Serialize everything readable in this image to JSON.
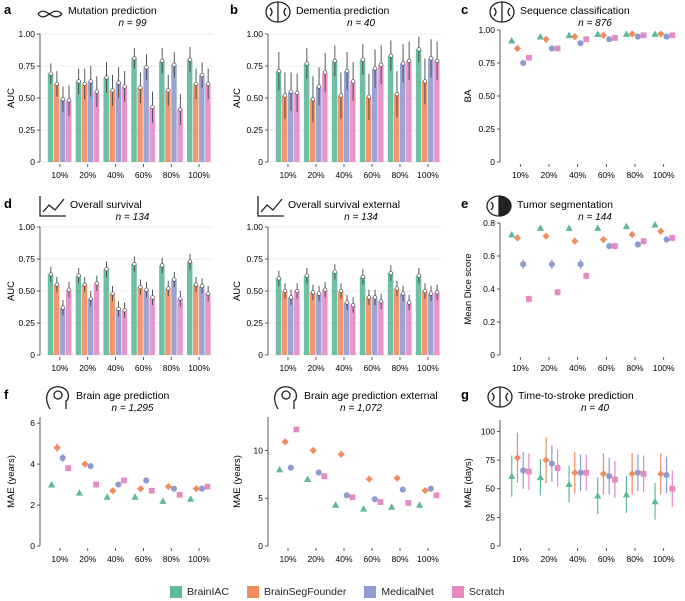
{
  "colors": {
    "BrainIAC": "#5fb89a",
    "BrainSegFounder": "#f08c5e",
    "MedicalNet": "#8f9bd0",
    "Scratch": "#e58ac4",
    "errorbar": "#333333",
    "grid": "#dddddd"
  },
  "legend": {
    "items": [
      {
        "name": "BrainIAC",
        "color": "#5fb89a"
      },
      {
        "name": "BrainSegFounder",
        "color": "#f08c5e"
      },
      {
        "name": "MedicalNet",
        "color": "#8f9bd0"
      },
      {
        "name": "Scratch",
        "color": "#e58ac4"
      }
    ]
  },
  "chart_data": [
    {
      "id": "a",
      "panel_letter": "a",
      "type": "bar",
      "title": "Mutation prediction",
      "subtitle": "n = 99",
      "icon": "dna-icon",
      "ylabel": "AUC",
      "ylim": [
        0,
        1.0
      ],
      "yticks": [
        "0",
        "0.25",
        "0.50",
        "0.75",
        "1.00"
      ],
      "categories": [
        "10%",
        "20%",
        "40%",
        "60%",
        "80%",
        "100%"
      ],
      "series": [
        {
          "name": "BrainIAC",
          "values": [
            0.69,
            0.63,
            0.66,
            0.81,
            0.79,
            0.8
          ],
          "err": [
            0.08,
            0.1,
            0.12,
            0.08,
            0.1,
            0.1
          ]
        },
        {
          "name": "BrainSegFounder",
          "values": [
            0.61,
            0.61,
            0.56,
            0.58,
            0.56,
            0.61
          ],
          "err": [
            0.1,
            0.12,
            0.12,
            0.12,
            0.12,
            0.12
          ]
        },
        {
          "name": "MedicalNet",
          "values": [
            0.49,
            0.63,
            0.62,
            0.74,
            0.76,
            0.68
          ],
          "err": [
            0.1,
            0.12,
            0.12,
            0.1,
            0.1,
            0.1
          ]
        },
        {
          "name": "Scratch",
          "values": [
            0.48,
            0.55,
            0.59,
            0.43,
            0.41,
            0.61
          ],
          "err": [
            0.12,
            0.12,
            0.12,
            0.12,
            0.12,
            0.12
          ]
        }
      ]
    },
    {
      "id": "b",
      "panel_letter": "b",
      "type": "bar",
      "title": "Dementia prediction",
      "subtitle": "n = 40",
      "icon": "brain-icon",
      "ylabel": "AUC",
      "ylim": [
        0,
        1.0
      ],
      "yticks": [
        "0",
        "0.25",
        "0.50",
        "0.75",
        "1.00"
      ],
      "categories": [
        "10%",
        "20%",
        "40%",
        "60%",
        "80%",
        "100%"
      ],
      "series": [
        {
          "name": "BrainIAC",
          "values": [
            0.71,
            0.77,
            0.79,
            0.8,
            0.83,
            0.88
          ],
          "err": [
            0.15,
            0.12,
            0.12,
            0.12,
            0.12,
            0.1
          ]
        },
        {
          "name": "BrainSegFounder",
          "values": [
            0.52,
            0.49,
            0.52,
            0.51,
            0.53,
            0.63
          ],
          "err": [
            0.18,
            0.18,
            0.18,
            0.18,
            0.18,
            0.18
          ]
        },
        {
          "name": "MedicalNet",
          "values": [
            0.55,
            0.59,
            0.71,
            0.73,
            0.77,
            0.81
          ],
          "err": [
            0.15,
            0.15,
            0.15,
            0.15,
            0.15,
            0.15
          ]
        },
        {
          "name": "Scratch",
          "values": [
            0.54,
            0.7,
            0.63,
            0.76,
            0.79,
            0.79
          ],
          "err": [
            0.15,
            0.15,
            0.15,
            0.15,
            0.15,
            0.15
          ]
        }
      ]
    },
    {
      "id": "c",
      "panel_letter": "c",
      "type": "scatter",
      "title": "Sequence classification",
      "subtitle": "n = 876",
      "icon": "brain-icon",
      "ylabel": "BA",
      "ylim": [
        0,
        1.0
      ],
      "yticks": [
        "0",
        "0.25",
        "0.50",
        "0.75",
        "1.00"
      ],
      "categories": [
        "10%",
        "20%",
        "40%",
        "60%",
        "80%",
        "100%"
      ],
      "series": [
        {
          "name": "BrainIAC",
          "values": [
            0.92,
            0.95,
            0.96,
            0.97,
            0.97,
            0.97
          ],
          "err": [
            0.01,
            0.01,
            0.01,
            0.01,
            0.01,
            0.01
          ]
        },
        {
          "name": "BrainSegFounder",
          "values": [
            0.86,
            0.93,
            0.95,
            0.96,
            0.97,
            0.97
          ],
          "err": [
            0.01,
            0.01,
            0.01,
            0.01,
            0.01,
            0.01
          ]
        },
        {
          "name": "MedicalNet",
          "values": [
            0.75,
            0.86,
            0.9,
            0.93,
            0.95,
            0.95
          ],
          "err": [
            0.01,
            0.01,
            0.01,
            0.01,
            0.01,
            0.01
          ]
        },
        {
          "name": "Scratch",
          "values": [
            0.79,
            0.86,
            0.93,
            0.94,
            0.96,
            0.96
          ],
          "err": [
            0.01,
            0.01,
            0.01,
            0.01,
            0.01,
            0.01
          ]
        }
      ]
    },
    {
      "id": "d1",
      "panel_letter": "d",
      "type": "bar",
      "title": "Overall survival",
      "subtitle": "n = 134",
      "icon": "trend-chart-icon",
      "ylabel": "AUC",
      "ylim": [
        0,
        1.0
      ],
      "yticks": [
        "0",
        "0.25",
        "0.50",
        "0.75",
        "1.00"
      ],
      "categories": [
        "10%",
        "20%",
        "40%",
        "60%",
        "80%",
        "100%"
      ],
      "series": [
        {
          "name": "BrainIAC",
          "values": [
            0.63,
            0.62,
            0.67,
            0.71,
            0.7,
            0.73
          ],
          "err": [
            0.06,
            0.06,
            0.06,
            0.06,
            0.06,
            0.06
          ]
        },
        {
          "name": "BrainSegFounder",
          "values": [
            0.55,
            0.55,
            0.48,
            0.53,
            0.52,
            0.55
          ],
          "err": [
            0.06,
            0.06,
            0.06,
            0.06,
            0.06,
            0.06
          ]
        },
        {
          "name": "MedicalNet",
          "values": [
            0.37,
            0.44,
            0.36,
            0.51,
            0.59,
            0.54
          ],
          "err": [
            0.06,
            0.06,
            0.06,
            0.06,
            0.06,
            0.06
          ]
        },
        {
          "name": "Scratch",
          "values": [
            0.51,
            0.56,
            0.35,
            0.45,
            0.44,
            0.48
          ],
          "err": [
            0.06,
            0.06,
            0.06,
            0.06,
            0.06,
            0.06
          ]
        }
      ]
    },
    {
      "id": "d2",
      "panel_letter": "",
      "type": "bar",
      "title": "Overall survival external",
      "subtitle": "n = 134",
      "icon": "trend-chart-icon",
      "ylabel": "AUC",
      "ylim": [
        0,
        1.0
      ],
      "yticks": [
        "0",
        "0.25",
        "0.50",
        "0.75",
        "1.00"
      ],
      "categories": [
        "10%",
        "20%",
        "40%",
        "60%",
        "80%",
        "100%"
      ],
      "series": [
        {
          "name": "BrainIAC",
          "values": [
            0.6,
            0.62,
            0.65,
            0.61,
            0.64,
            0.62
          ],
          "err": [
            0.06,
            0.06,
            0.06,
            0.06,
            0.06,
            0.06
          ]
        },
        {
          "name": "BrainSegFounder",
          "values": [
            0.5,
            0.49,
            0.5,
            0.45,
            0.52,
            0.5
          ],
          "err": [
            0.06,
            0.06,
            0.06,
            0.06,
            0.06,
            0.06
          ]
        },
        {
          "name": "MedicalNet",
          "values": [
            0.45,
            0.48,
            0.41,
            0.45,
            0.48,
            0.48
          ],
          "err": [
            0.06,
            0.06,
            0.06,
            0.06,
            0.06,
            0.06
          ]
        },
        {
          "name": "Scratch",
          "values": [
            0.5,
            0.51,
            0.39,
            0.42,
            0.41,
            0.49
          ],
          "err": [
            0.06,
            0.06,
            0.06,
            0.06,
            0.06,
            0.06
          ]
        }
      ]
    },
    {
      "id": "e",
      "panel_letter": "e",
      "type": "scatter",
      "title": "Tumor segmentation",
      "subtitle": "n = 144",
      "icon": "brain-half-icon",
      "ylabel": "Mean Dice score",
      "ylim": [
        0,
        0.8
      ],
      "yticks": [
        "0",
        "0.2",
        "0.4",
        "0.6",
        "0.8"
      ],
      "categories": [
        "10%",
        "20%",
        "40%",
        "60%",
        "80%",
        "100%"
      ],
      "series": [
        {
          "name": "BrainIAC",
          "values": [
            0.73,
            0.77,
            0.77,
            0.77,
            0.78,
            0.79
          ],
          "err": [
            0.01,
            0.01,
            0.01,
            0.01,
            0.01,
            0.01
          ]
        },
        {
          "name": "BrainSegFounder",
          "values": [
            0.71,
            0.72,
            0.69,
            0.7,
            0.73,
            0.75
          ],
          "err": [
            0.02,
            0.02,
            0.02,
            0.02,
            0.02,
            0.02
          ]
        },
        {
          "name": "MedicalNet",
          "values": [
            0.55,
            0.55,
            0.55,
            0.66,
            0.67,
            0.7
          ],
          "err": [
            0.03,
            0.03,
            0.03,
            0.02,
            0.02,
            0.02
          ]
        },
        {
          "name": "Scratch",
          "values": [
            0.34,
            0.38,
            0.48,
            0.66,
            0.69,
            0.71
          ],
          "err": [
            0.02,
            0.02,
            0.02,
            0.02,
            0.02,
            0.02
          ]
        }
      ]
    },
    {
      "id": "f1",
      "panel_letter": "f",
      "type": "scatter",
      "title": "Brain age prediction",
      "subtitle": "n = 1,295",
      "icon": "head-brain-icon",
      "ylabel": "MAE (years)",
      "ylim": [
        0,
        6.3
      ],
      "yticks": [
        "0",
        "2",
        "4",
        "6"
      ],
      "ytick_values": [
        0,
        2,
        4,
        6
      ],
      "categories": [
        "10%",
        "20%",
        "40%",
        "60%",
        "80%",
        "100%"
      ],
      "series": [
        {
          "name": "BrainIAC",
          "values": [
            3.0,
            2.6,
            2.4,
            2.4,
            2.2,
            2.3
          ],
          "err": [
            0.1,
            0.1,
            0.1,
            0.1,
            0.1,
            0.1
          ]
        },
        {
          "name": "BrainSegFounder",
          "values": [
            4.8,
            4.0,
            2.7,
            2.8,
            2.9,
            2.8
          ],
          "err": [
            0.2,
            0.15,
            0.1,
            0.1,
            0.1,
            0.1
          ]
        },
        {
          "name": "MedicalNet",
          "values": [
            4.3,
            3.9,
            3.0,
            3.2,
            2.8,
            2.8
          ],
          "err": [
            0.2,
            0.15,
            0.1,
            0.15,
            0.1,
            0.1
          ]
        },
        {
          "name": "Scratch",
          "values": [
            3.8,
            3.0,
            3.2,
            2.7,
            2.5,
            2.9
          ],
          "err": [
            0.15,
            0.1,
            0.1,
            0.1,
            0.1,
            0.1
          ]
        }
      ]
    },
    {
      "id": "f2",
      "panel_letter": "",
      "type": "scatter",
      "title": "Brain age prediction external",
      "subtitle": "n = 1,072",
      "icon": "head-brain-icon",
      "ylabel": "MAE (years)",
      "ylim": [
        0,
        13.5
      ],
      "yticks": [
        "0",
        "5",
        "10"
      ],
      "ytick_values": [
        0,
        5,
        10
      ],
      "categories": [
        "10%",
        "20%",
        "40%",
        "60%",
        "80%",
        "100%"
      ],
      "series": [
        {
          "name": "BrainIAC",
          "values": [
            8.0,
            7.0,
            4.3,
            3.9,
            4.1,
            4.3
          ],
          "err": [
            0.2,
            0.2,
            0.2,
            0.2,
            0.2,
            0.2
          ]
        },
        {
          "name": "BrainSegFounder",
          "values": [
            10.9,
            10.0,
            9.6,
            7.0,
            7.1,
            5.8
          ],
          "err": [
            0.3,
            0.3,
            0.3,
            0.3,
            0.3,
            0.3
          ]
        },
        {
          "name": "MedicalNet",
          "values": [
            8.2,
            7.7,
            5.3,
            4.9,
            5.9,
            6.0
          ],
          "err": [
            0.3,
            0.2,
            0.2,
            0.2,
            0.2,
            0.2
          ]
        },
        {
          "name": "Scratch",
          "values": [
            12.2,
            7.3,
            5.1,
            4.6,
            4.5,
            5.3
          ],
          "err": [
            0.3,
            0.2,
            0.2,
            0.2,
            0.2,
            0.2
          ]
        }
      ]
    },
    {
      "id": "g",
      "panel_letter": "g",
      "type": "scatter",
      "title": "Time-to-stroke prediction",
      "subtitle": "n = 40",
      "icon": "brain-clock-icon",
      "ylabel": "MAE (days)",
      "ylim": [
        0,
        110
      ],
      "yticks": [
        "0",
        "25",
        "50",
        "75",
        "100"
      ],
      "ytick_values": [
        0,
        25,
        50,
        75,
        100
      ],
      "categories": [
        "10%",
        "20%",
        "40%",
        "60%",
        "80%",
        "100%"
      ],
      "series": [
        {
          "name": "BrainIAC",
          "values": [
            61,
            60,
            54,
            44,
            45,
            39
          ],
          "err": [
            18,
            16,
            16,
            16,
            16,
            16
          ]
        },
        {
          "name": "BrainSegFounder",
          "values": [
            77,
            75,
            64,
            63,
            63,
            63
          ],
          "err": [
            22,
            20,
            18,
            18,
            18,
            18
          ]
        },
        {
          "name": "MedicalNet",
          "values": [
            66,
            72,
            64,
            61,
            64,
            62
          ],
          "err": [
            16,
            16,
            16,
            16,
            16,
            16
          ]
        },
        {
          "name": "Scratch",
          "values": [
            65,
            68,
            64,
            58,
            63,
            50
          ],
          "err": [
            16,
            16,
            16,
            16,
            16,
            16
          ]
        }
      ]
    }
  ]
}
